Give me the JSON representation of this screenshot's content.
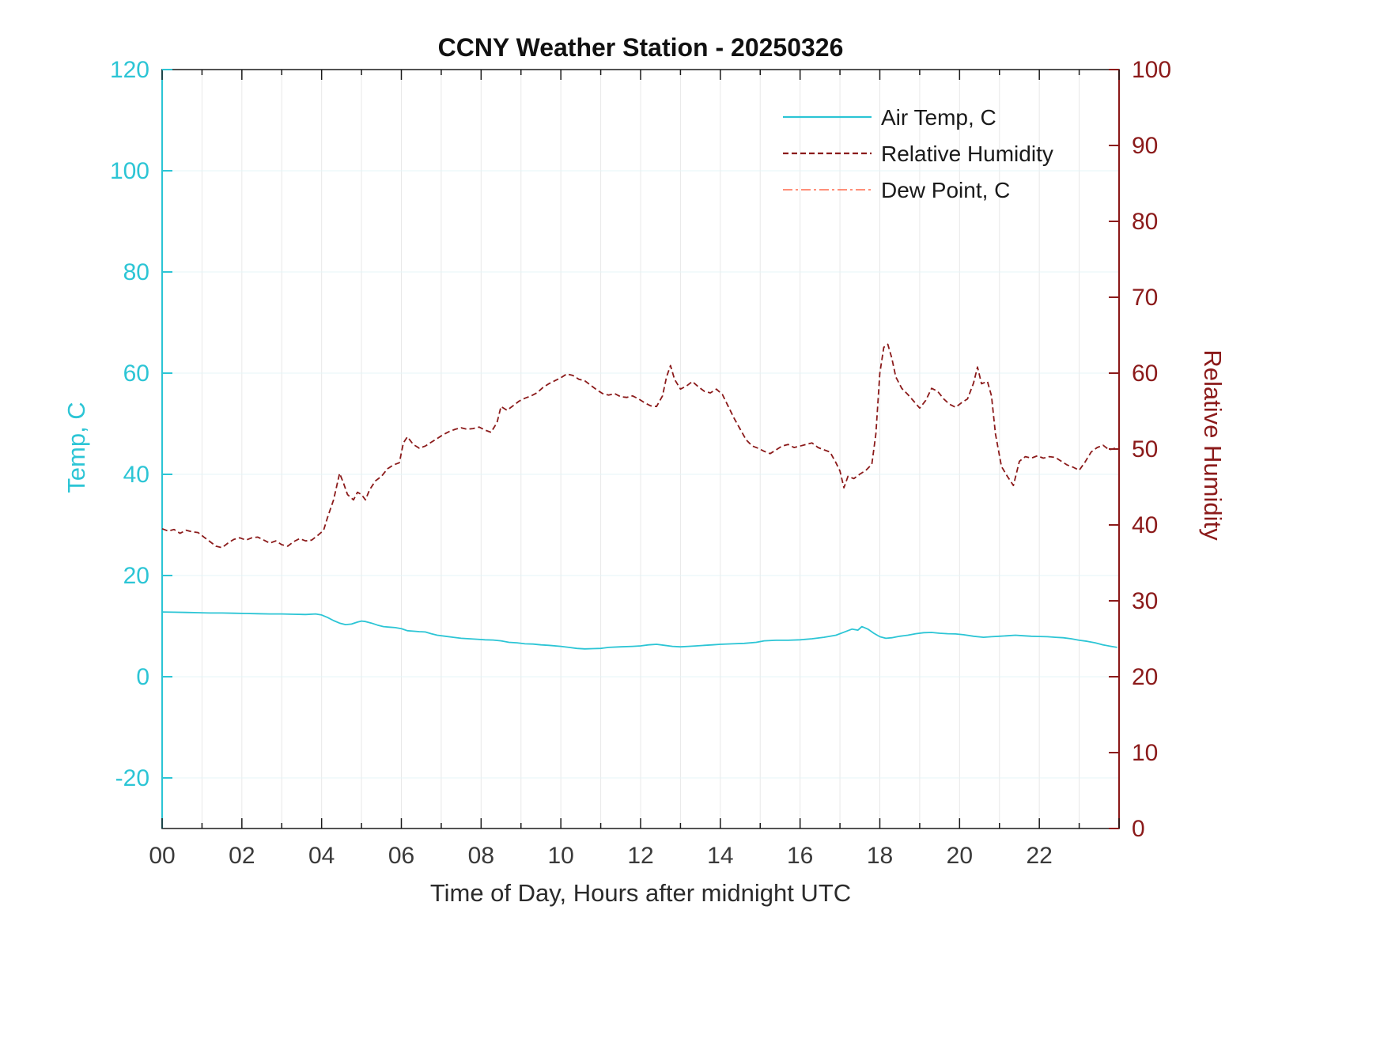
{
  "chart_data": {
    "type": "line",
    "title": "CCNY Weather Station - 20250326",
    "xlabel": "Time of Day, Hours after midnight UTC",
    "x_range": [
      0,
      24
    ],
    "x_major_tick_step_hours": 2,
    "x_minor_tick_step_hours": 1,
    "x_tick_labels": [
      "00",
      "02",
      "04",
      "06",
      "08",
      "10",
      "12",
      "14",
      "16",
      "18",
      "20",
      "22"
    ],
    "grid": "on",
    "left_axis": {
      "label": "Temp, C",
      "range": [
        -30,
        120
      ],
      "ticks": [
        -20,
        0,
        20,
        40,
        60,
        80,
        100,
        120
      ],
      "color": "#2cc5d5"
    },
    "right_axis": {
      "label": "Relative Humidity",
      "range": [
        0,
        100
      ],
      "ticks": [
        0,
        10,
        20,
        30,
        40,
        50,
        60,
        70,
        80,
        90,
        100
      ],
      "color": "#8b1a1a"
    },
    "legend": {
      "position": "top-right-inside",
      "entries": [
        "Air Temp, C",
        "Relative Humidity",
        "Dew Point, C"
      ]
    },
    "series": [
      {
        "name": "Air Temp, C",
        "axis": "left",
        "color": "#2cc5d5",
        "style": "solid",
        "width": 1.8,
        "points": [
          [
            0,
            12.8
          ],
          [
            0.3,
            12.75
          ],
          [
            0.6,
            12.7
          ],
          [
            0.9,
            12.65
          ],
          [
            1.2,
            12.6
          ],
          [
            1.5,
            12.6
          ],
          [
            1.8,
            12.55
          ],
          [
            2.1,
            12.5
          ],
          [
            2.4,
            12.45
          ],
          [
            2.7,
            12.4
          ],
          [
            3,
            12.4
          ],
          [
            3.3,
            12.35
          ],
          [
            3.6,
            12.3
          ],
          [
            3.85,
            12.4
          ],
          [
            4,
            12.2
          ],
          [
            4.15,
            11.7
          ],
          [
            4.3,
            11.1
          ],
          [
            4.45,
            10.6
          ],
          [
            4.6,
            10.3
          ],
          [
            4.75,
            10.4
          ],
          [
            4.9,
            10.8
          ],
          [
            5,
            11
          ],
          [
            5.1,
            10.9
          ],
          [
            5.25,
            10.6
          ],
          [
            5.4,
            10.2
          ],
          [
            5.55,
            9.9
          ],
          [
            5.7,
            9.8
          ],
          [
            5.85,
            9.7
          ],
          [
            6,
            9.5
          ],
          [
            6.15,
            9.1
          ],
          [
            6.3,
            9
          ],
          [
            6.45,
            8.9
          ],
          [
            6.6,
            8.85
          ],
          [
            6.75,
            8.5
          ],
          [
            6.9,
            8.2
          ],
          [
            7.1,
            8
          ],
          [
            7.3,
            7.8
          ],
          [
            7.5,
            7.6
          ],
          [
            7.7,
            7.5
          ],
          [
            7.9,
            7.4
          ],
          [
            8.1,
            7.3
          ],
          [
            8.3,
            7.25
          ],
          [
            8.5,
            7.1
          ],
          [
            8.7,
            6.8
          ],
          [
            8.9,
            6.7
          ],
          [
            9.1,
            6.5
          ],
          [
            9.3,
            6.45
          ],
          [
            9.5,
            6.3
          ],
          [
            9.7,
            6.2
          ],
          [
            10,
            6
          ],
          [
            10.2,
            5.8
          ],
          [
            10.4,
            5.6
          ],
          [
            10.6,
            5.5
          ],
          [
            10.8,
            5.55
          ],
          [
            11,
            5.6
          ],
          [
            11.2,
            5.8
          ],
          [
            11.5,
            5.9
          ],
          [
            11.8,
            6
          ],
          [
            12,
            6.1
          ],
          [
            12.2,
            6.3
          ],
          [
            12.4,
            6.4
          ],
          [
            12.6,
            6.2
          ],
          [
            12.8,
            6
          ],
          [
            13,
            5.9
          ],
          [
            13.2,
            6
          ],
          [
            13.4,
            6.1
          ],
          [
            13.6,
            6.2
          ],
          [
            13.8,
            6.3
          ],
          [
            14,
            6.4
          ],
          [
            14.3,
            6.5
          ],
          [
            14.6,
            6.6
          ],
          [
            14.9,
            6.8
          ],
          [
            15.1,
            7.1
          ],
          [
            15.4,
            7.2
          ],
          [
            15.7,
            7.2
          ],
          [
            16,
            7.3
          ],
          [
            16.3,
            7.5
          ],
          [
            16.6,
            7.8
          ],
          [
            16.9,
            8.2
          ],
          [
            17.1,
            8.8
          ],
          [
            17.3,
            9.4
          ],
          [
            17.45,
            9.2
          ],
          [
            17.55,
            9.9
          ],
          [
            17.7,
            9.4
          ],
          [
            17.85,
            8.6
          ],
          [
            18,
            7.9
          ],
          [
            18.15,
            7.6
          ],
          [
            18.3,
            7.7
          ],
          [
            18.5,
            8
          ],
          [
            18.7,
            8.2
          ],
          [
            18.9,
            8.5
          ],
          [
            19.1,
            8.7
          ],
          [
            19.3,
            8.75
          ],
          [
            19.5,
            8.6
          ],
          [
            19.7,
            8.5
          ],
          [
            19.9,
            8.45
          ],
          [
            20.1,
            8.3
          ],
          [
            20.35,
            8
          ],
          [
            20.6,
            7.8
          ],
          [
            20.8,
            7.9
          ],
          [
            21,
            8
          ],
          [
            21.2,
            8.1
          ],
          [
            21.4,
            8.2
          ],
          [
            21.6,
            8.1
          ],
          [
            21.8,
            8
          ],
          [
            22,
            7.95
          ],
          [
            22.2,
            7.9
          ],
          [
            22.4,
            7.8
          ],
          [
            22.6,
            7.7
          ],
          [
            22.8,
            7.5
          ],
          [
            23,
            7.2
          ],
          [
            23.2,
            7
          ],
          [
            23.4,
            6.7
          ],
          [
            23.6,
            6.3
          ],
          [
            23.8,
            6
          ],
          [
            23.95,
            5.8
          ]
        ]
      },
      {
        "name": "Relative Humidity",
        "axis": "right",
        "color": "#8b1a1a",
        "style": "dashed",
        "width": 1.8,
        "points": [
          [
            0,
            39.5
          ],
          [
            0.15,
            39.2
          ],
          [
            0.3,
            39.4
          ],
          [
            0.45,
            38.9
          ],
          [
            0.6,
            39.3
          ],
          [
            0.75,
            39.1
          ],
          [
            0.9,
            39
          ],
          [
            1.05,
            38.4
          ],
          [
            1.2,
            37.8
          ],
          [
            1.35,
            37.2
          ],
          [
            1.5,
            37
          ],
          [
            1.65,
            37.6
          ],
          [
            1.8,
            38.1
          ],
          [
            1.95,
            38.3
          ],
          [
            2.1,
            38
          ],
          [
            2.25,
            38.3
          ],
          [
            2.4,
            38.4
          ],
          [
            2.55,
            38
          ],
          [
            2.7,
            37.6
          ],
          [
            2.85,
            37.9
          ],
          [
            3,
            37.4
          ],
          [
            3.15,
            37.2
          ],
          [
            3.3,
            37.8
          ],
          [
            3.45,
            38.2
          ],
          [
            3.6,
            37.9
          ],
          [
            3.75,
            38
          ],
          [
            3.9,
            38.6
          ],
          [
            4.05,
            39.3
          ],
          [
            4.15,
            41
          ],
          [
            4.3,
            43.3
          ],
          [
            4.45,
            46.8
          ],
          [
            4.55,
            45.5
          ],
          [
            4.65,
            44
          ],
          [
            4.8,
            43.3
          ],
          [
            4.9,
            44.3
          ],
          [
            5,
            44
          ],
          [
            5.1,
            43.3
          ],
          [
            5.2,
            44.6
          ],
          [
            5.35,
            45.8
          ],
          [
            5.5,
            46.4
          ],
          [
            5.65,
            47.4
          ],
          [
            5.8,
            47.9
          ],
          [
            5.95,
            48.2
          ],
          [
            6.05,
            50.8
          ],
          [
            6.15,
            51.6
          ],
          [
            6.3,
            50.6
          ],
          [
            6.45,
            50.1
          ],
          [
            6.6,
            50.4
          ],
          [
            6.75,
            50.9
          ],
          [
            6.9,
            51.4
          ],
          [
            7.05,
            51.9
          ],
          [
            7.2,
            52.3
          ],
          [
            7.35,
            52.6
          ],
          [
            7.5,
            52.8
          ],
          [
            7.65,
            52.6
          ],
          [
            7.8,
            52.7
          ],
          [
            7.95,
            52.9
          ],
          [
            8.1,
            52.5
          ],
          [
            8.25,
            52.2
          ],
          [
            8.4,
            53.5
          ],
          [
            8.5,
            55.6
          ],
          [
            8.65,
            55.1
          ],
          [
            8.8,
            55.7
          ],
          [
            8.95,
            56.3
          ],
          [
            9.1,
            56.7
          ],
          [
            9.25,
            57
          ],
          [
            9.4,
            57.4
          ],
          [
            9.55,
            58.1
          ],
          [
            9.7,
            58.6
          ],
          [
            9.85,
            59
          ],
          [
            10,
            59.4
          ],
          [
            10.15,
            59.9
          ],
          [
            10.3,
            59.7
          ],
          [
            10.45,
            59.2
          ],
          [
            10.6,
            59
          ],
          [
            10.75,
            58.4
          ],
          [
            10.9,
            57.8
          ],
          [
            11.05,
            57.3
          ],
          [
            11.2,
            57.1
          ],
          [
            11.35,
            57.3
          ],
          [
            11.5,
            56.9
          ],
          [
            11.65,
            56.8
          ],
          [
            11.8,
            57
          ],
          [
            11.95,
            56.6
          ],
          [
            12.1,
            56.1
          ],
          [
            12.25,
            55.7
          ],
          [
            12.4,
            55.6
          ],
          [
            12.55,
            57
          ],
          [
            12.65,
            59.5
          ],
          [
            12.75,
            61
          ],
          [
            12.85,
            59.2
          ],
          [
            13,
            57.9
          ],
          [
            13.15,
            58.3
          ],
          [
            13.3,
            58.9
          ],
          [
            13.45,
            58.2
          ],
          [
            13.6,
            57.6
          ],
          [
            13.75,
            57.4
          ],
          [
            13.9,
            57.9
          ],
          [
            14.05,
            57.2
          ],
          [
            14.2,
            55.6
          ],
          [
            14.35,
            54
          ],
          [
            14.5,
            52.6
          ],
          [
            14.65,
            51.2
          ],
          [
            14.8,
            50.4
          ],
          [
            14.95,
            50.1
          ],
          [
            15.1,
            49.7
          ],
          [
            15.25,
            49.4
          ],
          [
            15.4,
            49.9
          ],
          [
            15.55,
            50.4
          ],
          [
            15.7,
            50.6
          ],
          [
            15.85,
            50.2
          ],
          [
            16,
            50.4
          ],
          [
            16.15,
            50.6
          ],
          [
            16.3,
            50.8
          ],
          [
            16.45,
            50.2
          ],
          [
            16.6,
            49.9
          ],
          [
            16.75,
            49.6
          ],
          [
            16.9,
            48.2
          ],
          [
            17,
            47.1
          ],
          [
            17.1,
            44.9
          ],
          [
            17.2,
            46.4
          ],
          [
            17.35,
            46.1
          ],
          [
            17.5,
            46.7
          ],
          [
            17.65,
            47.2
          ],
          [
            17.8,
            48
          ],
          [
            17.9,
            52
          ],
          [
            18,
            60
          ],
          [
            18.1,
            63.4
          ],
          [
            18.2,
            63.8
          ],
          [
            18.3,
            62
          ],
          [
            18.4,
            59.5
          ],
          [
            18.55,
            58
          ],
          [
            18.7,
            57.2
          ],
          [
            18.85,
            56.3
          ],
          [
            19,
            55.4
          ],
          [
            19.15,
            56.4
          ],
          [
            19.3,
            58
          ],
          [
            19.45,
            57.6
          ],
          [
            19.6,
            56.6
          ],
          [
            19.75,
            55.9
          ],
          [
            19.9,
            55.5
          ],
          [
            20.05,
            56.1
          ],
          [
            20.2,
            56.6
          ],
          [
            20.35,
            58.7
          ],
          [
            20.45,
            60.8
          ],
          [
            20.55,
            58.6
          ],
          [
            20.7,
            58.9
          ],
          [
            20.8,
            57
          ],
          [
            20.9,
            52
          ],
          [
            21.05,
            47.7
          ],
          [
            21.2,
            46.4
          ],
          [
            21.35,
            45.2
          ],
          [
            21.5,
            48.4
          ],
          [
            21.65,
            49
          ],
          [
            21.8,
            48.8
          ],
          [
            21.95,
            49.1
          ],
          [
            22.1,
            48.8
          ],
          [
            22.25,
            49
          ],
          [
            22.4,
            48.9
          ],
          [
            22.55,
            48.4
          ],
          [
            22.7,
            47.9
          ],
          [
            22.85,
            47.6
          ],
          [
            23,
            47.2
          ],
          [
            23.15,
            48.3
          ],
          [
            23.3,
            49.6
          ],
          [
            23.45,
            50.2
          ],
          [
            23.6,
            50.5
          ],
          [
            23.75,
            49.9
          ],
          [
            23.9,
            50.1
          ]
        ]
      },
      {
        "name": "Dew Point, C",
        "axis": "left",
        "color": "#ff6a4d",
        "style": "dashdot",
        "width": 1.2,
        "points": []
      }
    ]
  },
  "style": {
    "grid_vertical_color": "#e8e8e8",
    "grid_horizontal_color": "#e4f4f7",
    "box_color": "#1a1a1a",
    "tick_label_color": "#3a3a3a"
  }
}
